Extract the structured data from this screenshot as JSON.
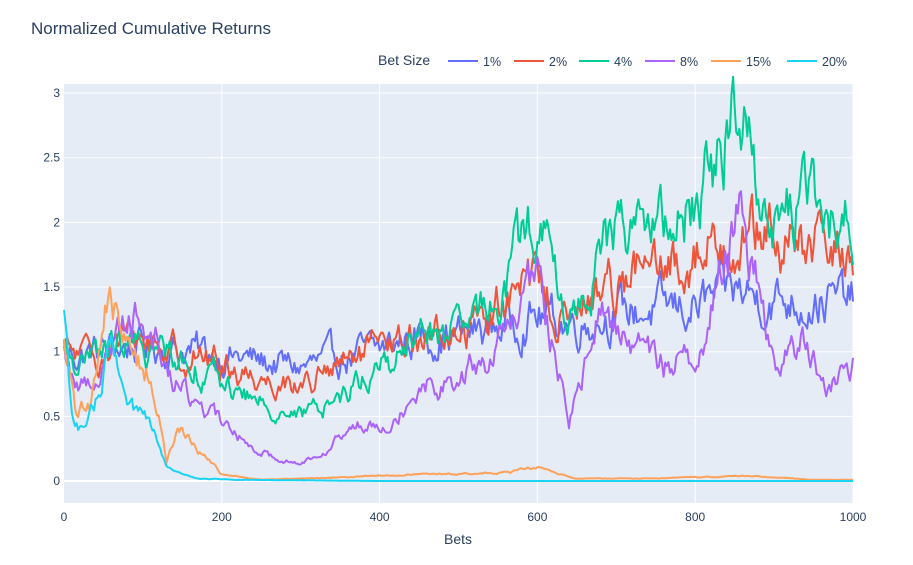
{
  "chart_data": {
    "type": "line",
    "title": "Normalized Cumulative Returns",
    "xlabel": "Bets",
    "ylabel": "",
    "xlim": [
      0,
      1000
    ],
    "ylim": [
      -0.17,
      3.07
    ],
    "x_ticks": [
      0,
      200,
      400,
      600,
      800,
      1000
    ],
    "y_ticks": [
      0,
      0.5,
      1,
      1.5,
      2,
      2.5,
      3
    ],
    "y_tick_labels": [
      "0",
      "0.5",
      "1",
      "1.5",
      "2",
      "2.5",
      "3"
    ],
    "grid": true,
    "legend": {
      "title": "Bet Size",
      "position": "top-right",
      "orientation": "horizontal"
    },
    "series": [
      {
        "name": "1%",
        "color": "#636efa",
        "keypoints": [
          [
            0,
            1.0
          ],
          [
            20,
            0.97
          ],
          [
            50,
            1.02
          ],
          [
            100,
            1.05
          ],
          [
            150,
            1.02
          ],
          [
            200,
            0.98
          ],
          [
            250,
            0.92
          ],
          [
            300,
            0.88
          ],
          [
            350,
            0.95
          ],
          [
            400,
            1.02
          ],
          [
            450,
            1.12
          ],
          [
            500,
            1.13
          ],
          [
            550,
            1.2
          ],
          [
            600,
            1.28
          ],
          [
            650,
            1.22
          ],
          [
            700,
            1.3
          ],
          [
            750,
            1.32
          ],
          [
            800,
            1.35
          ],
          [
            850,
            1.47
          ],
          [
            900,
            1.4
          ],
          [
            950,
            1.4
          ],
          [
            1000,
            1.4
          ]
        ]
      },
      {
        "name": "2%",
        "color": "#EF553B",
        "keypoints": [
          [
            0,
            1.0
          ],
          [
            30,
            0.95
          ],
          [
            60,
            1.05
          ],
          [
            100,
            1.1
          ],
          [
            140,
            1.0
          ],
          [
            180,
            0.95
          ],
          [
            220,
            0.85
          ],
          [
            260,
            0.78
          ],
          [
            300,
            0.75
          ],
          [
            330,
            0.82
          ],
          [
            380,
            0.97
          ],
          [
            420,
            1.05
          ],
          [
            450,
            1.12
          ],
          [
            500,
            1.15
          ],
          [
            550,
            1.35
          ],
          [
            600,
            1.55
          ],
          [
            640,
            1.2
          ],
          [
            680,
            1.5
          ],
          [
            720,
            1.65
          ],
          [
            760,
            1.58
          ],
          [
            800,
            1.75
          ],
          [
            850,
            1.95
          ],
          [
            880,
            1.9
          ],
          [
            920,
            1.8
          ],
          [
            960,
            1.78
          ],
          [
            1000,
            1.78
          ]
        ]
      },
      {
        "name": "4%",
        "color": "#00cc96",
        "keypoints": [
          [
            0,
            1.0
          ],
          [
            30,
            0.9
          ],
          [
            60,
            1.05
          ],
          [
            100,
            1.0
          ],
          [
            140,
            1.0
          ],
          [
            180,
            0.85
          ],
          [
            220,
            0.68
          ],
          [
            260,
            0.58
          ],
          [
            300,
            0.5
          ],
          [
            340,
            0.62
          ],
          [
            380,
            0.8
          ],
          [
            420,
            0.95
          ],
          [
            450,
            1.15
          ],
          [
            500,
            1.1
          ],
          [
            550,
            1.45
          ],
          [
            600,
            2.05
          ],
          [
            640,
            1.2
          ],
          [
            680,
            1.75
          ],
          [
            720,
            2.1
          ],
          [
            760,
            1.9
          ],
          [
            800,
            2.15
          ],
          [
            860,
            2.9
          ],
          [
            900,
            2.0
          ],
          [
            940,
            2.2
          ],
          [
            970,
            1.95
          ],
          [
            1000,
            2.1
          ]
        ]
      },
      {
        "name": "8%",
        "color": "#ab63fa",
        "keypoints": [
          [
            0,
            1.0
          ],
          [
            20,
            0.7
          ],
          [
            50,
            0.9
          ],
          [
            80,
            1.35
          ],
          [
            110,
            1.2
          ],
          [
            140,
            0.75
          ],
          [
            180,
            0.55
          ],
          [
            230,
            0.3
          ],
          [
            260,
            0.2
          ],
          [
            300,
            0.13
          ],
          [
            330,
            0.25
          ],
          [
            370,
            0.42
          ],
          [
            420,
            0.5
          ],
          [
            450,
            0.75
          ],
          [
            500,
            0.78
          ],
          [
            550,
            1.0
          ],
          [
            600,
            1.6
          ],
          [
            640,
            0.45
          ],
          [
            680,
            1.3
          ],
          [
            720,
            1.1
          ],
          [
            760,
            0.9
          ],
          [
            800,
            0.95
          ],
          [
            860,
            2.15
          ],
          [
            900,
            0.85
          ],
          [
            940,
            1.1
          ],
          [
            970,
            0.7
          ],
          [
            1000,
            0.9
          ]
        ]
      },
      {
        "name": "15%",
        "color": "#FFA15A",
        "keypoints": [
          [
            0,
            1.0
          ],
          [
            15,
            0.5
          ],
          [
            35,
            0.65
          ],
          [
            55,
            1.45
          ],
          [
            85,
            0.95
          ],
          [
            110,
            0.85
          ],
          [
            130,
            0.15
          ],
          [
            145,
            0.4
          ],
          [
            170,
            0.25
          ],
          [
            200,
            0.05
          ],
          [
            250,
            0.01
          ],
          [
            450,
            0.05
          ],
          [
            550,
            0.06
          ],
          [
            600,
            0.1
          ],
          [
            650,
            0.02
          ],
          [
            750,
            0.02
          ],
          [
            870,
            0.04
          ],
          [
            950,
            0.01
          ],
          [
            1000,
            0.01
          ]
        ]
      },
      {
        "name": "20%",
        "color": "#19d3f3",
        "keypoints": [
          [
            0,
            1.45
          ],
          [
            10,
            0.5
          ],
          [
            25,
            0.35
          ],
          [
            40,
            0.6
          ],
          [
            60,
            1.05
          ],
          [
            80,
            0.55
          ],
          [
            100,
            0.5
          ],
          [
            115,
            0.35
          ],
          [
            130,
            0.1
          ],
          [
            150,
            0.05
          ],
          [
            170,
            0.02
          ],
          [
            220,
            0.01
          ],
          [
            400,
            0.0
          ],
          [
            1000,
            0.0
          ]
        ]
      }
    ]
  }
}
